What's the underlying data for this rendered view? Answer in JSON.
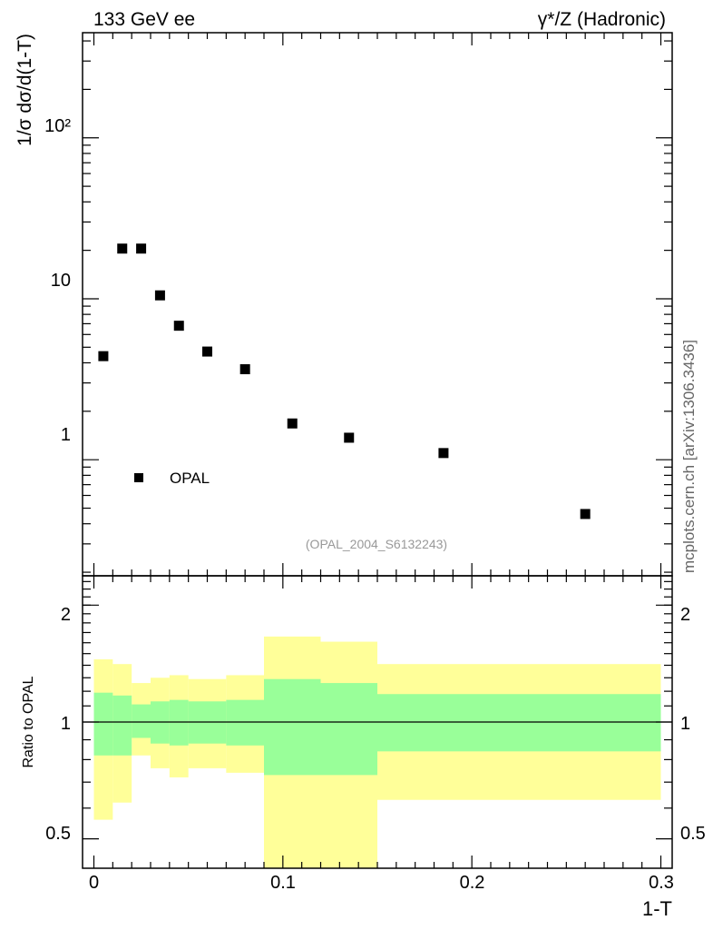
{
  "header": {
    "left_title": "133 GeV ee",
    "right_title": "γ*/Z (Hadronic)"
  },
  "side_label": "mcplots.cern.ch [arXiv:1306.3436]",
  "watermark": "(OPAL_2004_S6132243)",
  "colors": {
    "inner_band": "#99ff99",
    "outer_band": "#ffff99",
    "marker": "#000000"
  },
  "chart_data": [
    {
      "type": "scatter",
      "panel": "main",
      "ylabel": "1/σ dσ/d(1-T)",
      "yscale": "log",
      "ylim": [
        0.19,
        450
      ],
      "xlim": [
        -0.006,
        0.306
      ],
      "ytick_labels": [
        "1",
        "10",
        "10²"
      ],
      "legend": {
        "position": "bottom-left",
        "label": "OPAL"
      },
      "series": [
        {
          "name": "OPAL",
          "x": [
            0.005,
            0.015,
            0.025,
            0.035,
            0.045,
            0.06,
            0.08,
            0.105,
            0.135,
            0.185,
            0.26
          ],
          "y": [
            4.4,
            20.5,
            20.5,
            10.5,
            6.8,
            4.7,
            3.65,
            1.68,
            1.37,
            1.1,
            0.46
          ]
        }
      ]
    },
    {
      "type": "area",
      "panel": "ratio",
      "ylabel": "Ratio to OPAL",
      "xlabel": "1-T",
      "yscale": "log",
      "ylim": [
        0.42,
        2.38
      ],
      "xlim": [
        -0.006,
        0.306
      ],
      "xtick_labels": [
        "0",
        "0.1",
        "0.2",
        "0.3"
      ],
      "ytick_labels": [
        "0.5",
        "1",
        "2"
      ],
      "reference_line": 1,
      "bins": [
        0,
        0.01,
        0.02,
        0.03,
        0.04,
        0.05,
        0.07,
        0.09,
        0.12,
        0.15,
        0.3
      ],
      "inner_band": {
        "low": [
          0.82,
          0.82,
          0.91,
          0.88,
          0.87,
          0.88,
          0.87,
          0.73,
          0.73,
          0.84
        ],
        "high": [
          1.19,
          1.17,
          1.11,
          1.13,
          1.14,
          1.13,
          1.14,
          1.29,
          1.26,
          1.18
        ]
      },
      "outer_band": {
        "low": [
          0.56,
          0.62,
          0.82,
          0.76,
          0.72,
          0.76,
          0.74,
          0.39,
          0.39,
          0.63
        ],
        "high": [
          1.45,
          1.41,
          1.26,
          1.3,
          1.32,
          1.29,
          1.32,
          1.66,
          1.61,
          1.41
        ]
      }
    }
  ]
}
